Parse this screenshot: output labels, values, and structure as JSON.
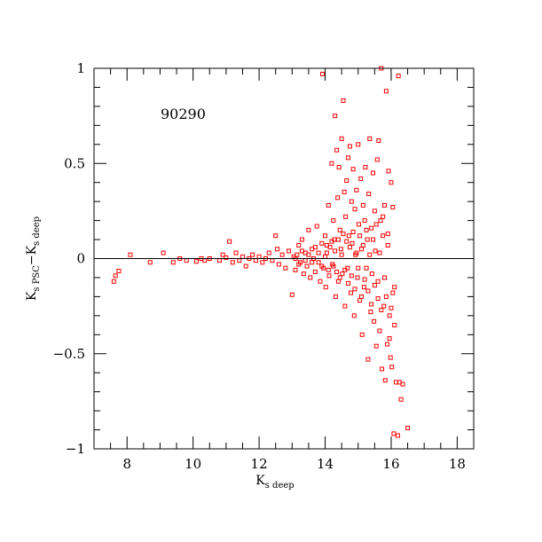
{
  "chart_data": {
    "type": "scatter",
    "annotation": "90290",
    "xlabel": {
      "main": "K",
      "sub": "s deep"
    },
    "ylabel": {
      "main1": "K",
      "sub1": "s PSC",
      "dash": "−",
      "main2": "K",
      "sub2": "s deep"
    },
    "xlim": [
      7,
      18.5
    ],
    "ylim": [
      -1,
      1
    ],
    "x_ticks": [
      8,
      10,
      12,
      14,
      16,
      18
    ],
    "y_ticks": [
      -1,
      -0.5,
      0,
      0.5,
      1
    ],
    "x_tick_labels": [
      "8",
      "10",
      "12",
      "14",
      "16",
      "18"
    ],
    "y_tick_labels": [
      "−1",
      "−0.5",
      "0",
      "0.5",
      "1"
    ],
    "reference_line_y": 0,
    "marker_color": "#ff0000",
    "points": [
      [
        7.6,
        -0.12
      ],
      [
        7.65,
        -0.09
      ],
      [
        7.75,
        -0.065
      ],
      [
        8.1,
        0.02
      ],
      [
        8.7,
        -0.02
      ],
      [
        9.1,
        0.03
      ],
      [
        9.4,
        -0.02
      ],
      [
        9.6,
        0.0
      ],
      [
        9.8,
        -0.01
      ],
      [
        10.1,
        -0.015
      ],
      [
        10.25,
        0.0
      ],
      [
        10.35,
        -0.01
      ],
      [
        10.5,
        0.0
      ],
      [
        10.8,
        -0.01
      ],
      [
        10.9,
        0.02
      ],
      [
        11.0,
        0.005
      ],
      [
        11.1,
        0.09
      ],
      [
        11.2,
        -0.02
      ],
      [
        11.3,
        0.03
      ],
      [
        11.4,
        -0.01
      ],
      [
        11.5,
        0.01
      ],
      [
        11.6,
        -0.04
      ],
      [
        11.7,
        0.0
      ],
      [
        11.8,
        0.02
      ],
      [
        11.9,
        -0.01
      ],
      [
        12.0,
        0.01
      ],
      [
        12.1,
        -0.02
      ],
      [
        12.2,
        0.0
      ],
      [
        12.3,
        0.03
      ],
      [
        12.4,
        -0.01
      ],
      [
        12.5,
        0.12
      ],
      [
        12.55,
        0.05
      ],
      [
        12.6,
        -0.03
      ],
      [
        12.7,
        0.02
      ],
      [
        12.8,
        -0.05
      ],
      [
        12.9,
        0.04
      ],
      [
        13.0,
        -0.19
      ],
      [
        13.05,
        0.01
      ],
      [
        13.1,
        -0.06
      ],
      [
        13.2,
        0.07
      ],
      [
        13.25,
        -0.02
      ],
      [
        13.3,
        0.1
      ],
      [
        13.35,
        -0.08
      ],
      [
        13.4,
        0.03
      ],
      [
        13.45,
        -0.04
      ],
      [
        13.5,
        0.15
      ],
      [
        13.55,
        -0.1
      ],
      [
        13.6,
        0.05
      ],
      [
        13.65,
        0.0
      ],
      [
        13.7,
        -0.07
      ],
      [
        13.75,
        0.17
      ],
      [
        13.8,
        -0.02
      ],
      [
        13.85,
        -0.12
      ],
      [
        13.9,
        0.08
      ],
      [
        13.92,
        0.97
      ],
      [
        13.95,
        -0.05
      ],
      [
        14.0,
        0.12
      ],
      [
        14.02,
        -0.15
      ],
      [
        14.05,
        0.03
      ],
      [
        14.1,
        0.28
      ],
      [
        14.12,
        -0.09
      ],
      [
        14.15,
        0.06
      ],
      [
        14.2,
        0.5
      ],
      [
        14.22,
        -0.03
      ],
      [
        14.25,
        0.2
      ],
      [
        14.28,
        0.1
      ],
      [
        14.3,
        0.75
      ],
      [
        14.32,
        -0.2
      ],
      [
        14.35,
        0.57
      ],
      [
        14.38,
        0.32
      ],
      [
        14.4,
        -0.12
      ],
      [
        14.42,
        0.48
      ],
      [
        14.45,
        0.15
      ],
      [
        14.48,
        0.05
      ],
      [
        14.5,
        0.63
      ],
      [
        14.52,
        -0.08
      ],
      [
        14.55,
        0.83
      ],
      [
        14.58,
        0.35
      ],
      [
        14.6,
        -0.25
      ],
      [
        14.62,
        0.22
      ],
      [
        14.65,
        0.41
      ],
      [
        14.68,
        -0.05
      ],
      [
        14.7,
        0.53
      ],
      [
        14.72,
        0.12
      ],
      [
        14.75,
        0.59
      ],
      [
        14.78,
        -0.18
      ],
      [
        14.8,
        0.3
      ],
      [
        14.82,
        0.08
      ],
      [
        14.85,
        0.47
      ],
      [
        14.88,
        -0.3
      ],
      [
        14.9,
        0.26
      ],
      [
        14.92,
        0.02
      ],
      [
        14.95,
        0.36
      ],
      [
        14.98,
        -0.1
      ],
      [
        15.0,
        0.6
      ],
      [
        15.02,
        0.18
      ],
      [
        15.05,
        -0.22
      ],
      [
        15.08,
        0.42
      ],
      [
        15.1,
        0.05
      ],
      [
        15.12,
        -0.4
      ],
      [
        15.15,
        0.28
      ],
      [
        15.18,
        -0.15
      ],
      [
        15.2,
        0.2
      ],
      [
        15.22,
        0.48
      ],
      [
        15.25,
        -0.05
      ],
      [
        15.28,
        0.1
      ],
      [
        15.3,
        -0.53
      ],
      [
        15.32,
        0.34
      ],
      [
        15.35,
        0.63
      ],
      [
        15.38,
        -0.28
      ],
      [
        15.4,
        0.16
      ],
      [
        15.42,
        -0.08
      ],
      [
        15.45,
        0.45
      ],
      [
        15.48,
        -0.33
      ],
      [
        15.5,
        0.25
      ],
      [
        15.52,
        0.04
      ],
      [
        15.55,
        -0.46
      ],
      [
        15.58,
        0.52
      ],
      [
        15.6,
        -0.12
      ],
      [
        15.62,
        0.62
      ],
      [
        15.65,
        -0.38
      ],
      [
        15.68,
        0.2
      ],
      [
        15.7,
        1.0
      ],
      [
        15.72,
        -0.58
      ],
      [
        15.75,
        0.12
      ],
      [
        15.78,
        -0.25
      ],
      [
        15.8,
        0.28
      ],
      [
        15.82,
        -0.64
      ],
      [
        15.85,
        0.88
      ],
      [
        15.88,
        -0.45
      ],
      [
        15.9,
        0.07
      ],
      [
        15.92,
        0.46
      ],
      [
        15.95,
        -0.3
      ],
      [
        15.98,
        -0.52
      ],
      [
        16.0,
        0.4
      ],
      [
        16.02,
        -0.57
      ],
      [
        16.05,
        -0.18
      ],
      [
        16.08,
        -0.92
      ],
      [
        16.1,
        -0.35
      ],
      [
        16.15,
        -0.65
      ],
      [
        16.2,
        -0.93
      ],
      [
        16.22,
        0.96
      ],
      [
        16.25,
        -0.65
      ],
      [
        16.3,
        -0.74
      ],
      [
        16.35,
        -0.66
      ],
      [
        16.5,
        -0.89
      ],
      [
        13.1,
        0.0
      ],
      [
        13.15,
        0.02
      ],
      [
        13.2,
        -0.03
      ],
      [
        13.3,
        0.04
      ],
      [
        13.4,
        -0.01
      ],
      [
        13.5,
        0.02
      ],
      [
        13.6,
        -0.02
      ],
      [
        13.7,
        0.06
      ],
      [
        13.8,
        0.03
      ],
      [
        13.9,
        -0.04
      ],
      [
        14.0,
        0.01
      ],
      [
        14.05,
        0.07
      ],
      [
        14.1,
        -0.06
      ],
      [
        14.2,
        0.09
      ],
      [
        14.25,
        -0.04
      ],
      [
        14.3,
        0.04
      ],
      [
        14.35,
        -0.07
      ],
      [
        14.4,
        0.1
      ],
      [
        14.45,
        -0.1
      ],
      [
        14.5,
        0.02
      ],
      [
        14.55,
        0.13
      ],
      [
        14.6,
        -0.06
      ],
      [
        14.65,
        0.09
      ],
      [
        14.7,
        -0.13
      ],
      [
        14.75,
        0.06
      ],
      [
        14.8,
        -0.09
      ],
      [
        14.85,
        0.14
      ],
      [
        14.9,
        -0.16
      ],
      [
        14.95,
        0.03
      ],
      [
        15.0,
        -0.05
      ],
      [
        15.05,
        0.12
      ],
      [
        15.1,
        -0.2
      ],
      [
        15.15,
        0.07
      ],
      [
        15.2,
        -0.11
      ],
      [
        15.25,
        0.15
      ],
      [
        15.3,
        -0.17
      ],
      [
        15.35,
        0.02
      ],
      [
        15.4,
        -0.24
      ],
      [
        15.45,
        0.1
      ],
      [
        15.5,
        -0.14
      ],
      [
        15.55,
        0.18
      ],
      [
        15.6,
        -0.21
      ],
      [
        15.65,
        0.03
      ],
      [
        15.7,
        -0.27
      ],
      [
        15.75,
        0.22
      ],
      [
        15.8,
        -0.1
      ],
      [
        15.85,
        -0.2
      ],
      [
        15.9,
        0.13
      ],
      [
        15.95,
        -0.42
      ],
      [
        16.0,
        -0.26
      ],
      [
        16.05,
        0.27
      ],
      [
        16.1,
        -0.15
      ]
    ]
  }
}
